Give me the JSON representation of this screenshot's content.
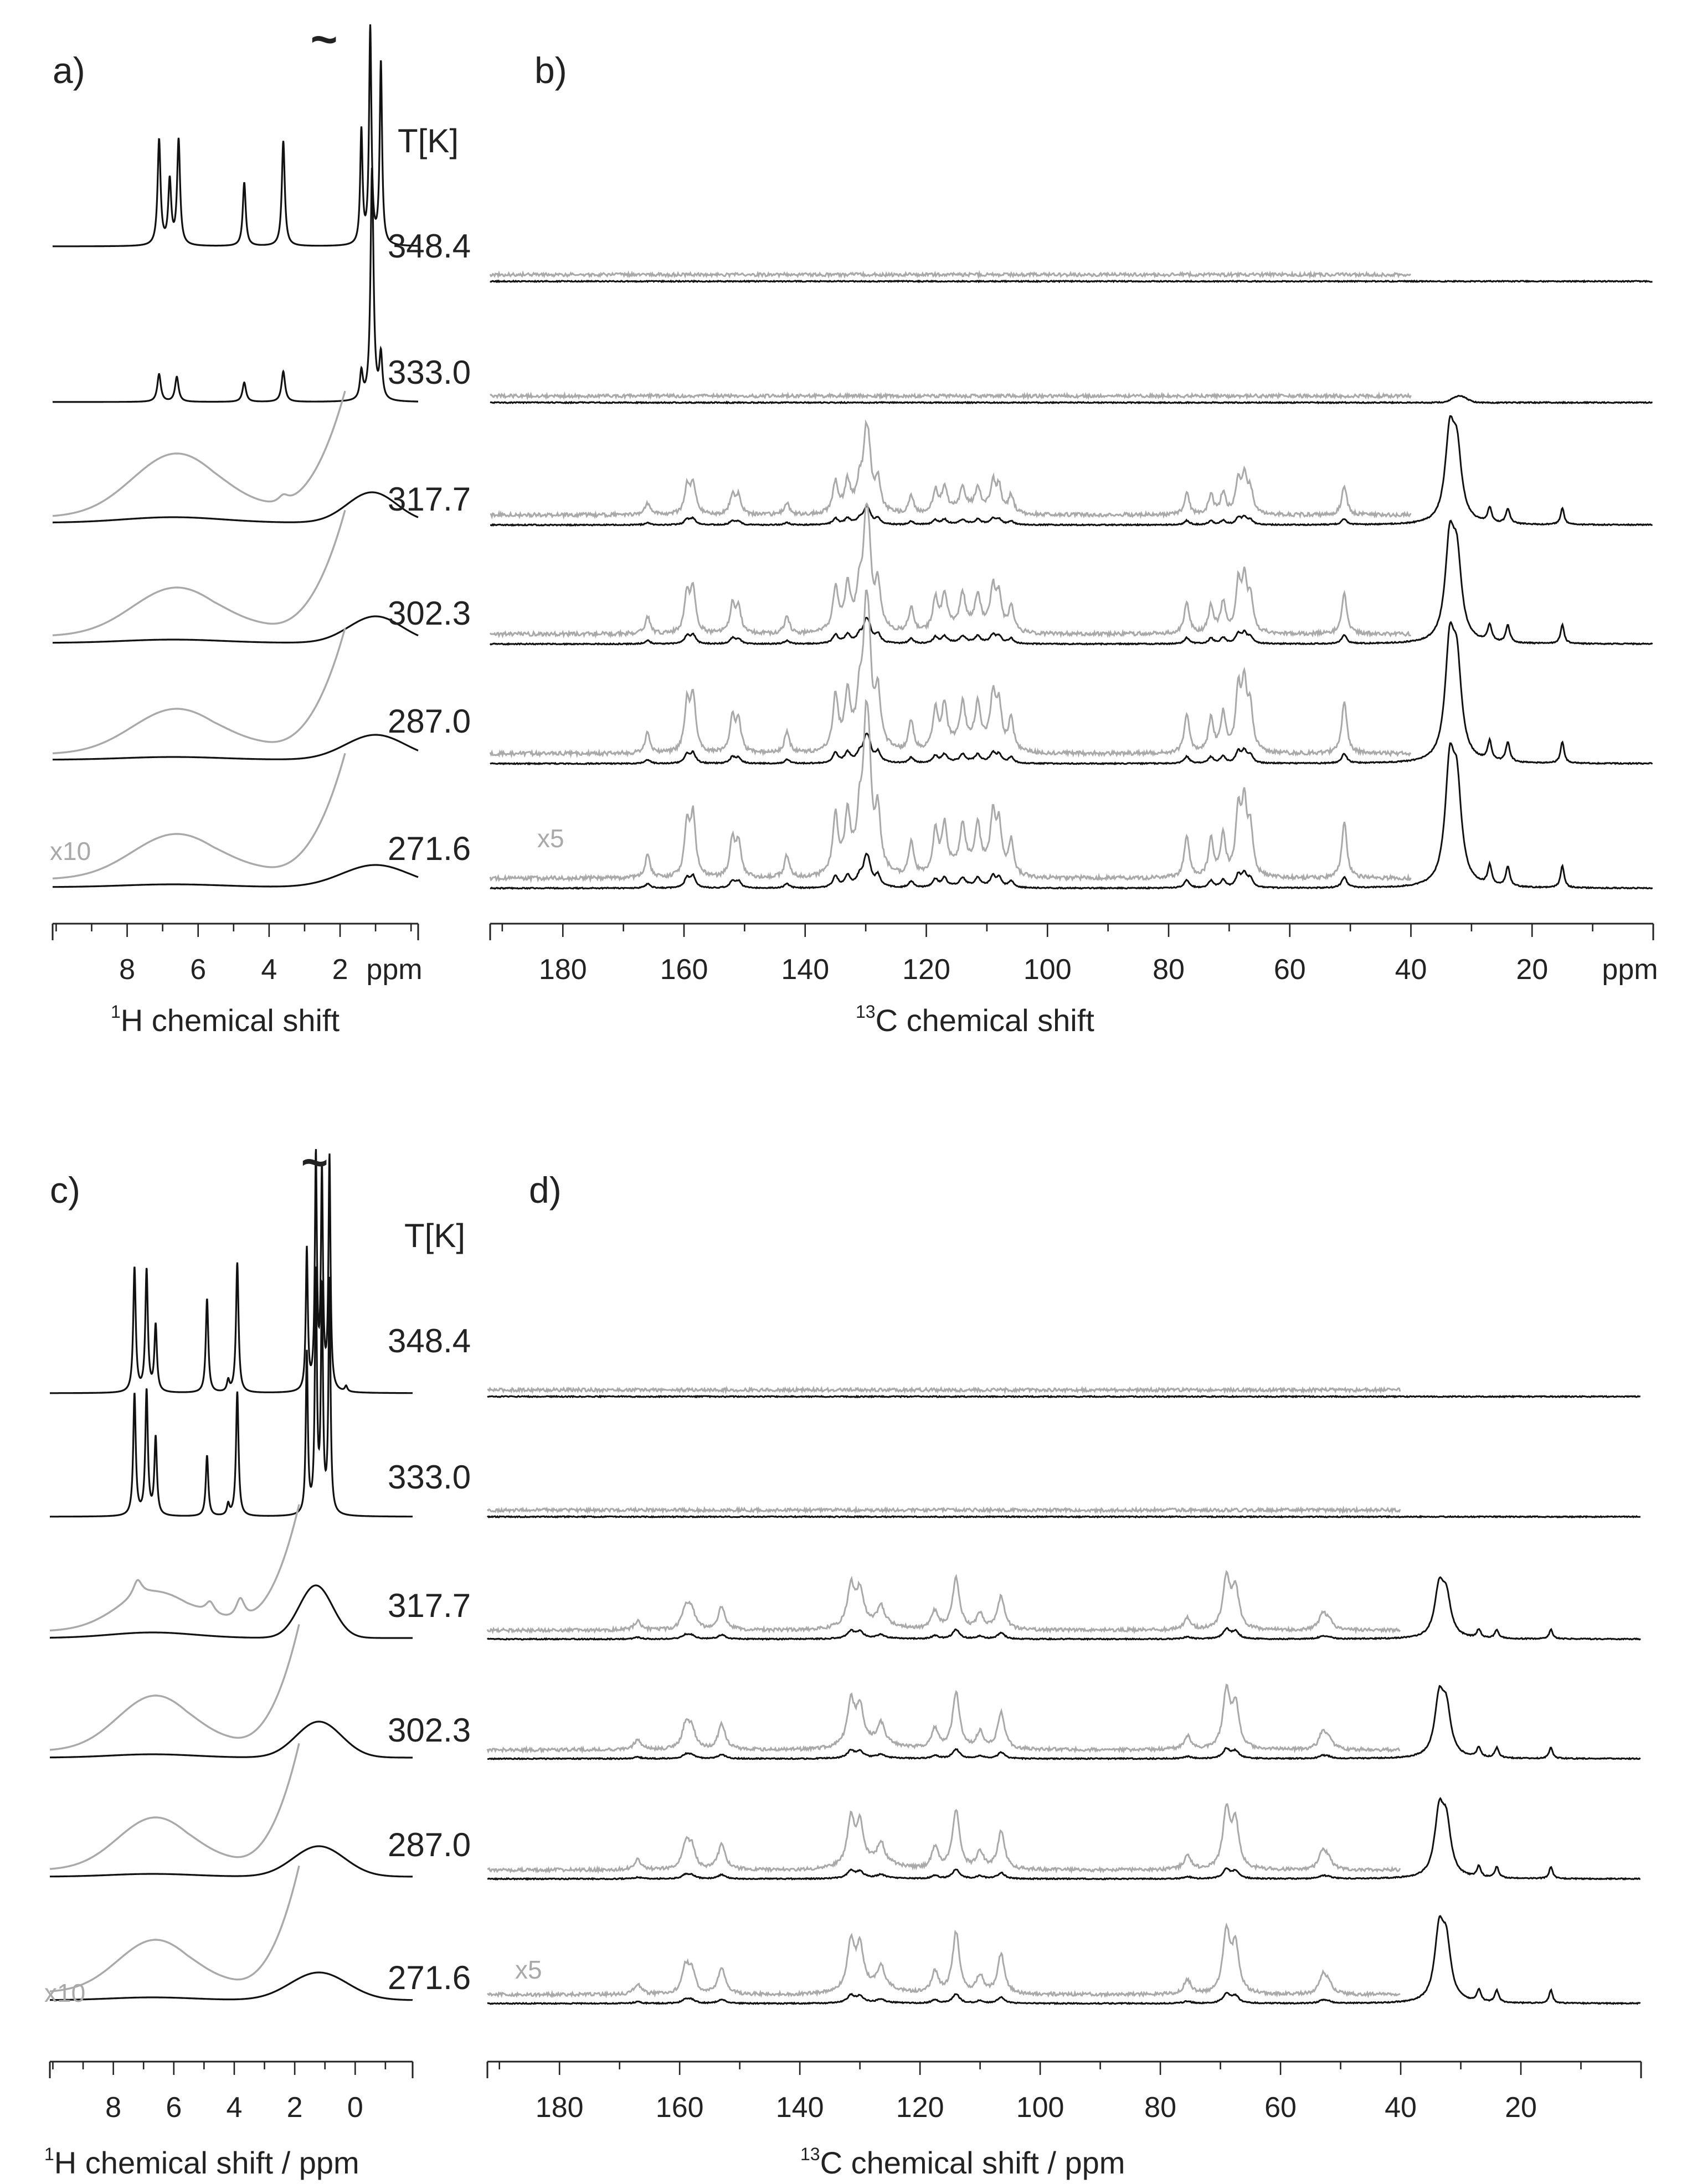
{
  "figure": {
    "temperature_header": "T[K]",
    "tilde": "~",
    "gray_scale_h": "x10",
    "gray_scale_c": "x5"
  },
  "colors": {
    "black_trace": "#111111",
    "gray_trace": "#a9a9a9",
    "axis": "#222222"
  },
  "chart_data": [
    {
      "id": "a",
      "panel_label": "a)",
      "type": "line",
      "nucleus": "1H",
      "xlabel_sup": "1",
      "xlabel_main": "H chemical shift",
      "x_range": [
        10,
        -0.2
      ],
      "ticks": [
        "8",
        "6",
        "4",
        "2",
        "ppm"
      ],
      "temperatures_K": [
        "348.4",
        "333.0",
        "317.7",
        "302.3",
        "287.0",
        "271.6"
      ],
      "gray_scale": "x10",
      "peaks_ppm": [
        7.0,
        6.6,
        4.6,
        3.6,
        1.4,
        1.1,
        0.9
      ],
      "series": [
        {
          "name": "348.4 K",
          "style": "sharp, no gray overlay"
        },
        {
          "name": "333.0 K",
          "style": "sharp, reduced aromatic peaks"
        },
        {
          "name": "317.7 K",
          "style": "broad, gray x10 overlay"
        },
        {
          "name": "302.3 K",
          "style": "broad, gray x10 overlay"
        },
        {
          "name": "287.0 K",
          "style": "broad, gray x10 overlay"
        },
        {
          "name": "271.6 K",
          "style": "broad, gray x10 overlay"
        }
      ]
    },
    {
      "id": "b",
      "panel_label": "b)",
      "type": "line",
      "nucleus": "13C",
      "xlabel_sup": "13",
      "xlabel_main": "C chemical shift",
      "x_range": [
        192,
        0
      ],
      "ticks": [
        "180",
        "160",
        "140",
        "120",
        "100",
        "80",
        "60",
        "40",
        "20",
        "ppm"
      ],
      "temperatures_K": [
        "348.4",
        "333.0",
        "317.7",
        "302.3",
        "287.0",
        "271.6"
      ],
      "gray_scale": "x5",
      "peaks_ppm": [
        166,
        159,
        158,
        152,
        143,
        135,
        133,
        130,
        128,
        122,
        118,
        117,
        114,
        111,
        109,
        108,
        106,
        77,
        73,
        71,
        68,
        67,
        51,
        33,
        32,
        27,
        24,
        15
      ]
    },
    {
      "id": "c",
      "panel_label": "c)",
      "type": "line",
      "nucleus": "1H",
      "xlabel_sup": "1",
      "xlabel_main": "H chemical shift / ppm",
      "x_range": [
        10,
        -2
      ],
      "ticks": [
        "8",
        "6",
        "4",
        "2",
        "0"
      ],
      "temperatures_K": [
        "348.4",
        "333.0",
        "317.7",
        "302.3",
        "287.0",
        "271.6"
      ],
      "gray_scale": "x10",
      "peaks_ppm": [
        7.2,
        6.8,
        4.8,
        3.8,
        1.6,
        1.3,
        0.9
      ]
    },
    {
      "id": "d",
      "panel_label": "d)",
      "type": "line",
      "nucleus": "13C",
      "xlabel_sup": "13",
      "xlabel_main": "C chemical shift / ppm",
      "x_range": [
        192,
        0
      ],
      "ticks": [
        "180",
        "160",
        "140",
        "120",
        "100",
        "80",
        "60",
        "40",
        "20"
      ],
      "temperatures_K": [
        "348.4",
        "333.0",
        "317.7",
        "302.3",
        "287.0",
        "271.6"
      ],
      "gray_scale": "x5",
      "peaks_ppm": [
        167,
        159,
        158,
        153,
        131,
        129,
        126,
        117,
        114,
        110,
        106,
        75,
        69,
        67,
        53,
        34,
        33,
        28,
        25,
        15
      ]
    }
  ]
}
